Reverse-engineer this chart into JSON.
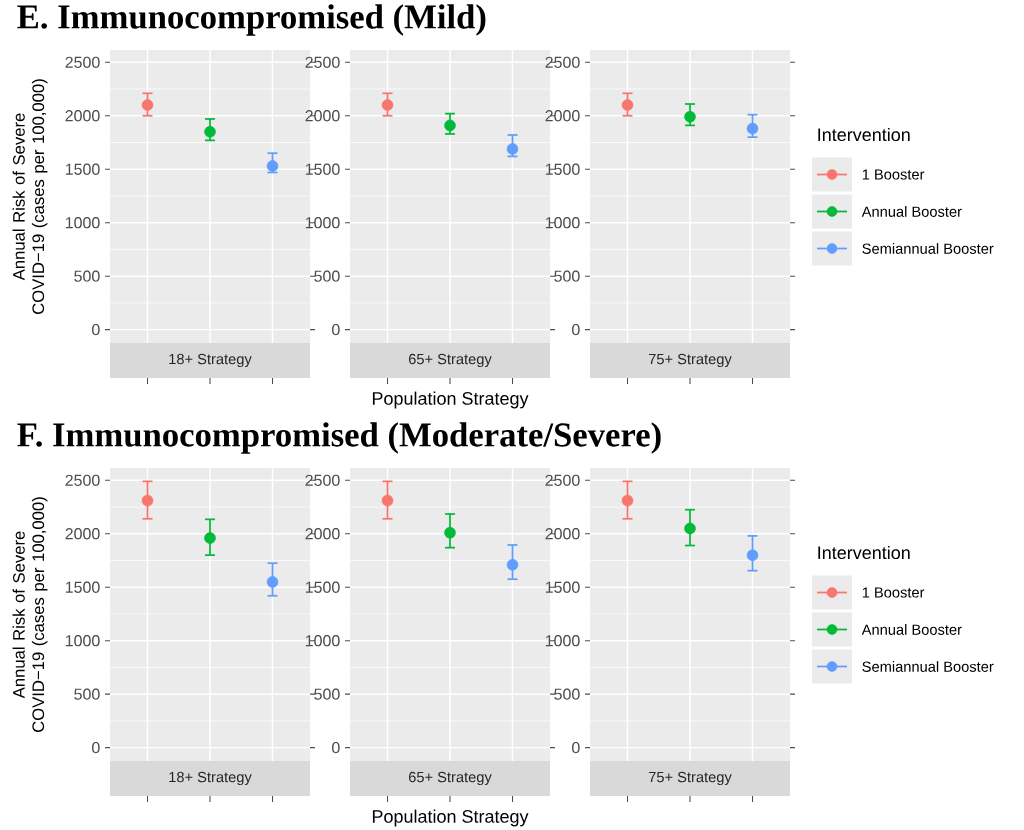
{
  "chart_data": [
    {
      "type": "scatter",
      "title": "E.  Immunocompromised (Mild)",
      "subtitle": "18+ Strategy",
      "ylabel": "Annual Risk of Severe COVID−19 (cases per 100,000)",
      "categories": [
        null,
        null,
        null
      ],
      "series": [
        {
          "color": "#f8766d",
          "values": [
            2100,
            null,
            null
          ],
          "errors": [
            [
              2000,
              2210
            ],
            null,
            null
          ]
        },
        {
          "color": "#00ba38",
          "values": [
            null,
            1850,
            null
          ],
          "errors": [
            null,
            [
              1770,
              1970
            ],
            null
          ]
        },
        {
          "color": "#619cff",
          "values": [
            null,
            null,
            1530
          ],
          "errors": [
            null,
            null,
            [
              1470,
              1650
            ]
          ]
        }
      ],
      "ylim": [
        -125,
        2615
      ],
      "yticks": [
        0,
        500,
        1000,
        1500,
        2000,
        2500
      ],
      "grid": true,
      "marker": "circle"
    },
    {
      "type": "scatter",
      "subtitle": "65+ Strategy",
      "xlabel": "Population Strategy",
      "categories": [
        null,
        null,
        null
      ],
      "series": [
        {
          "color": "#f8766d",
          "values": [
            2100,
            null,
            null
          ],
          "errors": [
            [
              2000,
              2210
            ],
            null,
            null
          ]
        },
        {
          "color": "#00ba38",
          "values": [
            null,
            1910,
            null
          ],
          "errors": [
            null,
            [
              1830,
              2020
            ],
            null
          ]
        },
        {
          "color": "#619cff",
          "values": [
            null,
            null,
            1690
          ],
          "errors": [
            null,
            null,
            [
              1620,
              1820
            ]
          ]
        }
      ],
      "ylim": [
        -125,
        2615
      ],
      "yticks": [
        0,
        500,
        1000,
        1500,
        2000,
        2500
      ],
      "grid": true,
      "marker": "circle"
    },
    {
      "type": "scatter",
      "subtitle": "75+ Strategy",
      "legend_title": "Intervention",
      "legend": "right",
      "categories": [
        null,
        null,
        null
      ],
      "series": [
        {
          "name": "1 Booster",
          "color": "#f8766d",
          "values": [
            2100,
            null,
            null
          ],
          "errors": [
            [
              2000,
              2210
            ],
            null,
            null
          ]
        },
        {
          "name": "Annual Booster",
          "color": "#00ba38",
          "values": [
            null,
            1990,
            null
          ],
          "errors": [
            null,
            [
              1910,
              2110
            ],
            null
          ]
        },
        {
          "name": "Semiannual Booster",
          "color": "#619cff",
          "values": [
            null,
            null,
            1880
          ],
          "errors": [
            null,
            null,
            [
              1800,
              2010
            ]
          ]
        }
      ],
      "ylim": [
        -125,
        2615
      ],
      "yticks": [
        0,
        500,
        1000,
        1500,
        2000,
        2500
      ],
      "grid": true,
      "marker": "circle"
    },
    {
      "type": "scatter",
      "title": "F.  Immunocompromised (Moderate/Severe)",
      "subtitle": "18+ Strategy",
      "ylabel": "Annual Risk of Severe COVID−19 (cases per 100,000)",
      "categories": [
        null,
        null,
        null
      ],
      "series": [
        {
          "color": "#f8766d",
          "values": [
            2310,
            null,
            null
          ],
          "errors": [
            [
              2140,
              2490
            ],
            null,
            null
          ]
        },
        {
          "color": "#00ba38",
          "values": [
            null,
            1960,
            null
          ],
          "errors": [
            null,
            [
              1800,
              2135
            ],
            null
          ]
        },
        {
          "color": "#619cff",
          "values": [
            null,
            null,
            1550
          ],
          "errors": [
            null,
            null,
            [
              1420,
              1725
            ]
          ]
        }
      ],
      "ylim": [
        -125,
        2615
      ],
      "yticks": [
        0,
        500,
        1000,
        1500,
        2000,
        2500
      ],
      "grid": true,
      "marker": "circle"
    },
    {
      "type": "scatter",
      "subtitle": "65+ Strategy",
      "xlabel": "Population Strategy",
      "categories": [
        null,
        null,
        null
      ],
      "series": [
        {
          "color": "#f8766d",
          "values": [
            2310,
            null,
            null
          ],
          "errors": [
            [
              2140,
              2490
            ],
            null,
            null
          ]
        },
        {
          "color": "#00ba38",
          "values": [
            null,
            2010,
            null
          ],
          "errors": [
            null,
            [
              1870,
              2185
            ],
            null
          ]
        },
        {
          "color": "#619cff",
          "values": [
            null,
            null,
            1710
          ],
          "errors": [
            null,
            null,
            [
              1575,
              1895
            ]
          ]
        }
      ],
      "ylim": [
        -125,
        2615
      ],
      "yticks": [
        0,
        500,
        1000,
        1500,
        2000,
        2500
      ],
      "grid": true,
      "marker": "circle"
    },
    {
      "type": "scatter",
      "subtitle": "75+ Strategy",
      "legend_title": "Intervention",
      "legend": "right",
      "categories": [
        null,
        null,
        null
      ],
      "series": [
        {
          "name": "1 Booster",
          "color": "#f8766d",
          "values": [
            2310,
            null,
            null
          ],
          "errors": [
            [
              2140,
              2490
            ],
            null,
            null
          ]
        },
        {
          "name": "Annual Booster",
          "color": "#00ba38",
          "values": [
            null,
            2050,
            null
          ],
          "errors": [
            null,
            [
              1890,
              2225
            ],
            null
          ]
        },
        {
          "name": "Semiannual Booster",
          "color": "#619cff",
          "values": [
            null,
            null,
            1800
          ],
          "errors": [
            null,
            null,
            [
              1655,
              1980
            ]
          ]
        }
      ],
      "ylim": [
        -125,
        2615
      ],
      "yticks": [
        0,
        500,
        1000,
        1500,
        2000,
        2500
      ],
      "grid": true,
      "marker": "circle"
    }
  ]
}
